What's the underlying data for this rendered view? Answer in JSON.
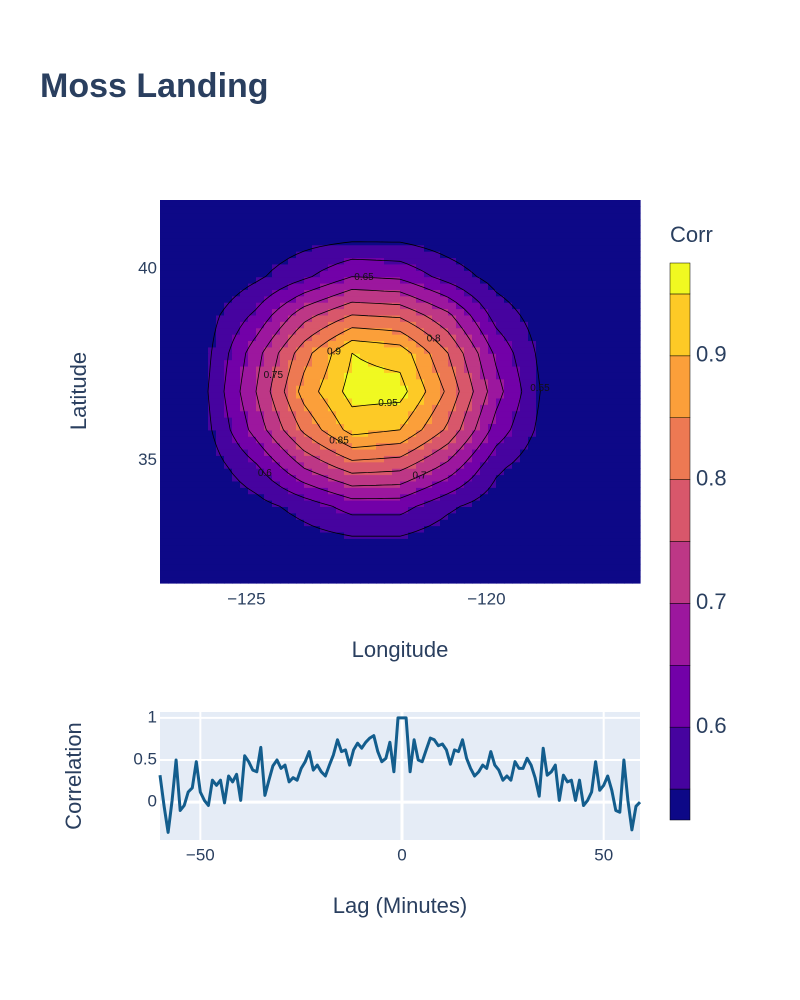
{
  "chart_data": [
    {
      "type": "contour",
      "title": "Moss Landing",
      "x_label": "Longitude",
      "y_label": "Latitude",
      "x": [
        -126.8,
        -125.8,
        -124.8,
        -123.8,
        -122.8,
        -121.8,
        -120.8,
        -119.8,
        -118.8,
        -117.8,
        -116.8
      ],
      "y": [
        31.8,
        32.8,
        33.8,
        34.8,
        35.8,
        36.8,
        37.8,
        38.8,
        39.8,
        40.8,
        41.8
      ],
      "z": [
        [
          0.45,
          0.45,
          0.46,
          0.48,
          0.49,
          0.49,
          0.48,
          0.46,
          0.45,
          0.45,
          0.45
        ],
        [
          0.45,
          0.47,
          0.5,
          0.52,
          0.53,
          0.53,
          0.51,
          0.49,
          0.46,
          0.45,
          0.45
        ],
        [
          0.46,
          0.5,
          0.53,
          0.57,
          0.62,
          0.62,
          0.56,
          0.52,
          0.49,
          0.46,
          0.45
        ],
        [
          0.48,
          0.52,
          0.59,
          0.7,
          0.77,
          0.76,
          0.68,
          0.56,
          0.51,
          0.47,
          0.45
        ],
        [
          0.49,
          0.54,
          0.67,
          0.81,
          0.92,
          0.9,
          0.79,
          0.63,
          0.53,
          0.49,
          0.45
        ],
        [
          0.5,
          0.55,
          0.7,
          0.87,
          0.97,
          0.97,
          0.84,
          0.67,
          0.54,
          0.49,
          0.45
        ],
        [
          0.5,
          0.54,
          0.68,
          0.83,
          0.95,
          0.93,
          0.8,
          0.64,
          0.53,
          0.49,
          0.45
        ],
        [
          0.49,
          0.53,
          0.61,
          0.73,
          0.8,
          0.79,
          0.71,
          0.58,
          0.52,
          0.48,
          0.45
        ],
        [
          0.47,
          0.5,
          0.54,
          0.59,
          0.65,
          0.64,
          0.58,
          0.53,
          0.5,
          0.46,
          0.45
        ],
        [
          0.45,
          0.48,
          0.51,
          0.53,
          0.54,
          0.54,
          0.52,
          0.5,
          0.47,
          0.45,
          0.45
        ],
        [
          0.45,
          0.45,
          0.47,
          0.49,
          0.5,
          0.49,
          0.48,
          0.46,
          0.45,
          0.45,
          0.45
        ]
      ],
      "levels": [
        0.55,
        0.6,
        0.65,
        0.7,
        0.75,
        0.8,
        0.85,
        0.9,
        0.95
      ],
      "colors": [
        "#0d0887",
        "#46039f",
        "#7201a8",
        "#9c179e",
        "#bd3786",
        "#d8576b",
        "#ed7953",
        "#fb9f3a",
        "#fdca26",
        "#f0f921"
      ],
      "line_color": "#000000",
      "xlim": [
        -126.8,
        -116.8
      ],
      "ylim": [
        31.8,
        41.8
      ],
      "xticks": [
        {
          "value": -125,
          "label": "−125"
        },
        {
          "value": -120,
          "label": "−120"
        }
      ],
      "yticks": [
        35,
        40
      ],
      "colorbar": {
        "title": "Corr",
        "zlim": [
          0.525,
          0.975
        ],
        "zticks": [
          0.6,
          0.7,
          0.8,
          0.9
        ]
      }
    },
    {
      "type": "line",
      "x_label": "Lag (Minutes)",
      "y_label": "Correlation",
      "color": "#135d8d",
      "grid": true,
      "x": [
        -60,
        -59,
        -58,
        -57,
        -56,
        -55,
        -54,
        -53,
        -52,
        -51,
        -50,
        -49,
        -48,
        -47,
        -46,
        -45,
        -44,
        -43,
        -42,
        -41,
        -40,
        -39,
        -38,
        -37,
        -36,
        -35,
        -34,
        -33,
        -32,
        -31,
        -30,
        -29,
        -28,
        -27,
        -26,
        -25,
        -24,
        -23,
        -22,
        -21,
        -20,
        -19,
        -18,
        -17,
        -16,
        -15,
        -14,
        -13,
        -12,
        -11,
        -10,
        -9,
        -8,
        -7,
        -6,
        -5,
        -4,
        -3,
        -2,
        -1,
        0,
        1,
        2,
        3,
        4,
        5,
        6,
        7,
        8,
        9,
        10,
        11,
        12,
        13,
        14,
        15,
        16,
        17,
        18,
        19,
        20,
        21,
        22,
        23,
        24,
        25,
        26,
        27,
        28,
        29,
        30,
        31,
        32,
        33,
        34,
        35,
        36,
        37,
        38,
        39,
        40,
        41,
        42,
        43,
        44,
        45,
        46,
        47,
        48,
        49,
        50,
        51,
        52,
        53,
        54,
        55,
        56,
        57,
        58,
        59
      ],
      "values": [
        0.32,
        -0.04,
        -0.36,
        0.02,
        0.5,
        -0.1,
        -0.04,
        0.12,
        0.17,
        0.48,
        0.12,
        0.02,
        -0.04,
        0.26,
        0.2,
        0.26,
        -0.01,
        0.31,
        0.24,
        0.33,
        0.02,
        0.55,
        0.48,
        0.38,
        0.36,
        0.65,
        0.08,
        0.26,
        0.43,
        0.5,
        0.4,
        0.44,
        0.24,
        0.29,
        0.26,
        0.4,
        0.48,
        0.6,
        0.38,
        0.44,
        0.36,
        0.31,
        0.44,
        0.56,
        0.74,
        0.6,
        0.62,
        0.44,
        0.62,
        0.7,
        0.64,
        0.71,
        0.76,
        0.79,
        0.6,
        0.48,
        0.52,
        0.71,
        0.36,
        1.0,
        1.0,
        1.0,
        0.36,
        0.74,
        0.5,
        0.48,
        0.62,
        0.76,
        0.74,
        0.67,
        0.69,
        0.62,
        0.45,
        0.62,
        0.6,
        0.74,
        0.52,
        0.4,
        0.31,
        0.36,
        0.44,
        0.4,
        0.6,
        0.44,
        0.38,
        0.26,
        0.31,
        0.26,
        0.48,
        0.4,
        0.4,
        0.52,
        0.44,
        0.29,
        0.07,
        0.64,
        0.32,
        0.36,
        0.44,
        0.02,
        0.32,
        0.24,
        0.26,
        0.02,
        0.26,
        -0.04,
        0.02,
        0.12,
        0.48,
        0.14,
        0.2,
        0.31,
        0.14,
        -0.1,
        -0.12,
        0.5,
        0.02,
        -0.33,
        -0.05,
        0.0
      ],
      "xlim": [
        -60,
        59
      ],
      "ylim": [
        -0.45,
        1.07
      ],
      "xticks": [
        {
          "value": -50,
          "label": "−50"
        },
        0,
        50
      ],
      "yticks": [
        0,
        0.5,
        1
      ]
    }
  ]
}
